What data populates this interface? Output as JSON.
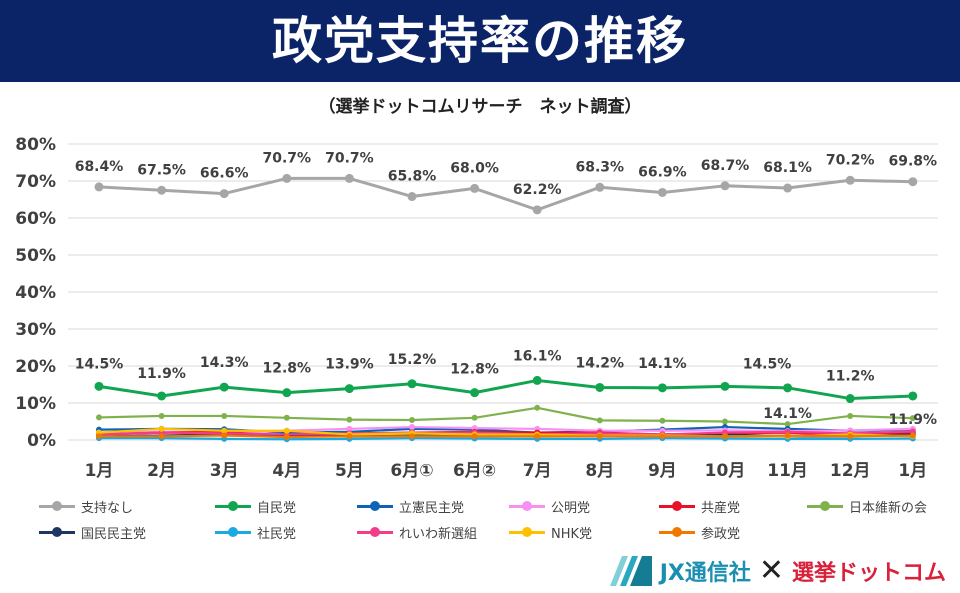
{
  "header": {
    "title": "政党支持率の推移",
    "subtitle": "（選挙ドットコムリサーチ　ネット調査）"
  },
  "footer": {
    "logo_jx": "JX通信社",
    "logo_times": "✕",
    "logo_senkyo": "選挙ドットコム"
  },
  "chart_data": {
    "type": "line",
    "title": "政党支持率の推移",
    "subtitle": "（選挙ドットコムリサーチ　ネット調査）",
    "xlabel": "",
    "ylabel": "",
    "ylim": [
      0,
      80
    ],
    "y_ticks": [
      "0%",
      "10%",
      "20%",
      "30%",
      "40%",
      "50%",
      "60%",
      "70%",
      "80%"
    ],
    "grid": "horizontal",
    "legend_position": "bottom",
    "categories": [
      "1月",
      "2月",
      "3月",
      "4月",
      "5月",
      "6月①",
      "6月②",
      "7月",
      "8月",
      "9月",
      "10月",
      "11月",
      "12月",
      "1月"
    ],
    "series": [
      {
        "name": "支持なし",
        "color": "#a6a6a6",
        "values": [
          68.4,
          67.5,
          66.6,
          70.7,
          70.7,
          65.8,
          68.0,
          62.2,
          68.3,
          66.9,
          68.7,
          68.1,
          70.2,
          69.8
        ],
        "labels": [
          "68.4%",
          "67.5%",
          "66.6%",
          "70.7%",
          "70.7%",
          "65.8%",
          "68.0%",
          "62.2%",
          "68.3%",
          "66.9%",
          "68.7%",
          "68.1%",
          "70.2%",
          "69.8%"
        ]
      },
      {
        "name": "自民党",
        "color": "#12a550",
        "values": [
          14.5,
          11.9,
          14.3,
          12.8,
          13.9,
          15.2,
          12.8,
          16.1,
          14.2,
          14.1,
          14.5,
          14.1,
          11.2,
          11.9
        ],
        "labels": [
          "14.5%",
          "11.9%",
          "14.3%",
          "12.8%",
          "13.9%",
          "15.2%",
          "12.8%",
          "16.1%",
          "14.2%",
          "14.1%",
          "14.5%",
          "14.1%",
          "11.2%",
          "11.9%"
        ]
      },
      {
        "name": "立憲民主党",
        "color": "#0d63b4",
        "values": [
          2.8,
          3.0,
          2.9,
          2.0,
          2.2,
          3.0,
          2.8,
          2.0,
          2.3,
          2.8,
          3.5,
          3.0,
          2.5,
          2.8
        ]
      },
      {
        "name": "公明党",
        "color": "#f790f2",
        "values": [
          2.0,
          2.2,
          2.0,
          2.5,
          3.0,
          3.5,
          3.2,
          3.0,
          2.5,
          2.5,
          2.6,
          2.4,
          2.6,
          3.0
        ]
      },
      {
        "name": "共産党",
        "color": "#e8102a",
        "values": [
          1.5,
          2.0,
          2.2,
          1.0,
          1.5,
          2.0,
          2.2,
          2.0,
          2.0,
          1.5,
          1.8,
          2.0,
          1.2,
          2.0
        ]
      },
      {
        "name": "日本維新の会",
        "color": "#7fb24c",
        "values": [
          6.1,
          6.5,
          6.5,
          6.0,
          5.5,
          5.4,
          6.0,
          8.7,
          5.3,
          5.2,
          5.0,
          4.3,
          6.5,
          5.9
        ]
      },
      {
        "name": "国民民主党",
        "color": "#1f3663",
        "values": [
          1.0,
          1.2,
          1.5,
          1.0,
          1.0,
          1.2,
          1.5,
          1.0,
          1.2,
          1.5,
          1.5,
          1.0,
          1.0,
          1.5
        ]
      },
      {
        "name": "社民党",
        "color": "#1aa9e0",
        "values": [
          0.5,
          0.5,
          0.3,
          0.2,
          0.3,
          0.5,
          0.4,
          0.3,
          0.3,
          0.5,
          0.4,
          0.3,
          0.3,
          0.4
        ]
      },
      {
        "name": "れいわ新選組",
        "color": "#f23d8a",
        "values": [
          1.5,
          2.0,
          1.8,
          1.5,
          1.8,
          2.0,
          2.0,
          1.5,
          1.8,
          1.5,
          2.0,
          2.2,
          1.8,
          2.3
        ]
      },
      {
        "name": "NHK党",
        "color": "#ffc000",
        "values": [
          2.0,
          3.0,
          2.5,
          2.5,
          1.5,
          1.8,
          1.5,
          1.5,
          1.2,
          1.2,
          1.0,
          1.0,
          1.5,
          1.0
        ]
      },
      {
        "name": "参政党",
        "color": "#f07800",
        "values": [
          1.0,
          1.0,
          1.2,
          0.8,
          1.0,
          1.0,
          1.0,
          1.0,
          1.0,
          1.0,
          1.0,
          1.2,
          1.0,
          1.2
        ]
      }
    ]
  }
}
